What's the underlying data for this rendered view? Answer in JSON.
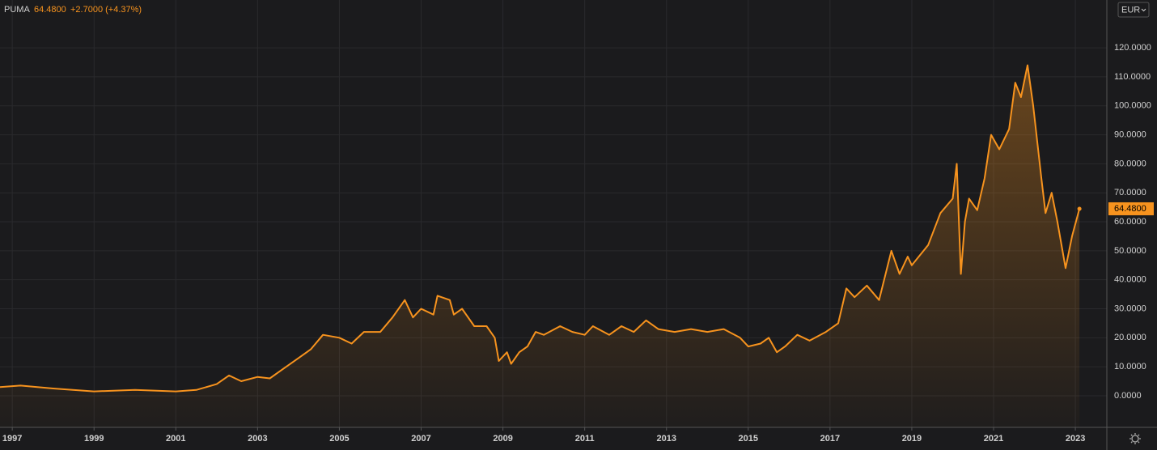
{
  "chart_data": {
    "type": "line",
    "title": "PUMA",
    "price": "64.4800",
    "change": "+2.7000 (+4.37%)",
    "currency": "EUR",
    "color": "#f7931e",
    "grid": true,
    "x": [
      1996.7,
      1997.2,
      1998,
      1999,
      2000,
      2001,
      2001.5,
      2002,
      2002.3,
      2002.6,
      2003,
      2003.3,
      2003.6,
      2004,
      2004.3,
      2004.6,
      2005,
      2005.3,
      2005.6,
      2006,
      2006.3,
      2006.6,
      2006.8,
      2007,
      2007.3,
      2007.4,
      2007.7,
      2007.8,
      2008,
      2008.3,
      2008.6,
      2008.8,
      2008.9,
      2009.1,
      2009.2,
      2009.4,
      2009.6,
      2009.8,
      2010,
      2010.4,
      2010.7,
      2011,
      2011.2,
      2011.6,
      2011.9,
      2012.2,
      2012.5,
      2012.8,
      2013.2,
      2013.6,
      2014,
      2014.4,
      2014.8,
      2015,
      2015.3,
      2015.5,
      2015.7,
      2015.9,
      2016.2,
      2016.5,
      2016.9,
      2017.2,
      2017.4,
      2017.6,
      2017.9,
      2018.2,
      2018.5,
      2018.7,
      2018.9,
      2019,
      2019.4,
      2019.7,
      2020,
      2020.1,
      2020.2,
      2020.3,
      2020.4,
      2020.6,
      2020.78,
      2020.94,
      2021.14,
      2021.38,
      2021.53,
      2021.67,
      2021.83,
      2021.97,
      2022.17,
      2022.27,
      2022.42,
      2022.56,
      2022.76,
      2022.92,
      2023.1
    ],
    "values": [
      3,
      3.5,
      2.5,
      1.5,
      2,
      1.5,
      2,
      4,
      7,
      5,
      6.5,
      6,
      9,
      13,
      16,
      21,
      20,
      18,
      22,
      22,
      27,
      33,
      27,
      30,
      28,
      34.5,
      33,
      28,
      30,
      24,
      24,
      20,
      12,
      15,
      11,
      15,
      17,
      22,
      21,
      24,
      22,
      21,
      24,
      21,
      24,
      22,
      26,
      23,
      22,
      23,
      22,
      23,
      20,
      17,
      18,
      20,
      15,
      17,
      21,
      19,
      22,
      25,
      37,
      34,
      38,
      33,
      50,
      42,
      48,
      45,
      52,
      63,
      68,
      80,
      42,
      60,
      68,
      64,
      75,
      90,
      85,
      92,
      108,
      103,
      114,
      100,
      75,
      63,
      70,
      60,
      44,
      55,
      64.48
    ],
    "xlim": [
      1996.7,
      2023.77
    ],
    "xticks": [
      1997,
      1999,
      2001,
      2003,
      2005,
      2007,
      2009,
      2011,
      2013,
      2015,
      2017,
      2019,
      2021,
      2023
    ],
    "ylim": [
      -10.9,
      136.5
    ],
    "yticks": [
      {
        "value": 0,
        "label": "0.0000"
      },
      {
        "value": 10,
        "label": "10.0000"
      },
      {
        "value": 20,
        "label": "20.0000"
      },
      {
        "value": 30,
        "label": "30.0000"
      },
      {
        "value": 40,
        "label": "40.0000"
      },
      {
        "value": 50,
        "label": "50.0000"
      },
      {
        "value": 60,
        "label": "60.0000"
      },
      {
        "value": 70,
        "label": "70.0000"
      },
      {
        "value": 80,
        "label": "80.0000"
      },
      {
        "value": 90,
        "label": "90.0000"
      },
      {
        "value": 100,
        "label": "100.0000"
      },
      {
        "value": 110,
        "label": "110.0000"
      },
      {
        "value": 120,
        "label": "120.0000"
      }
    ]
  }
}
